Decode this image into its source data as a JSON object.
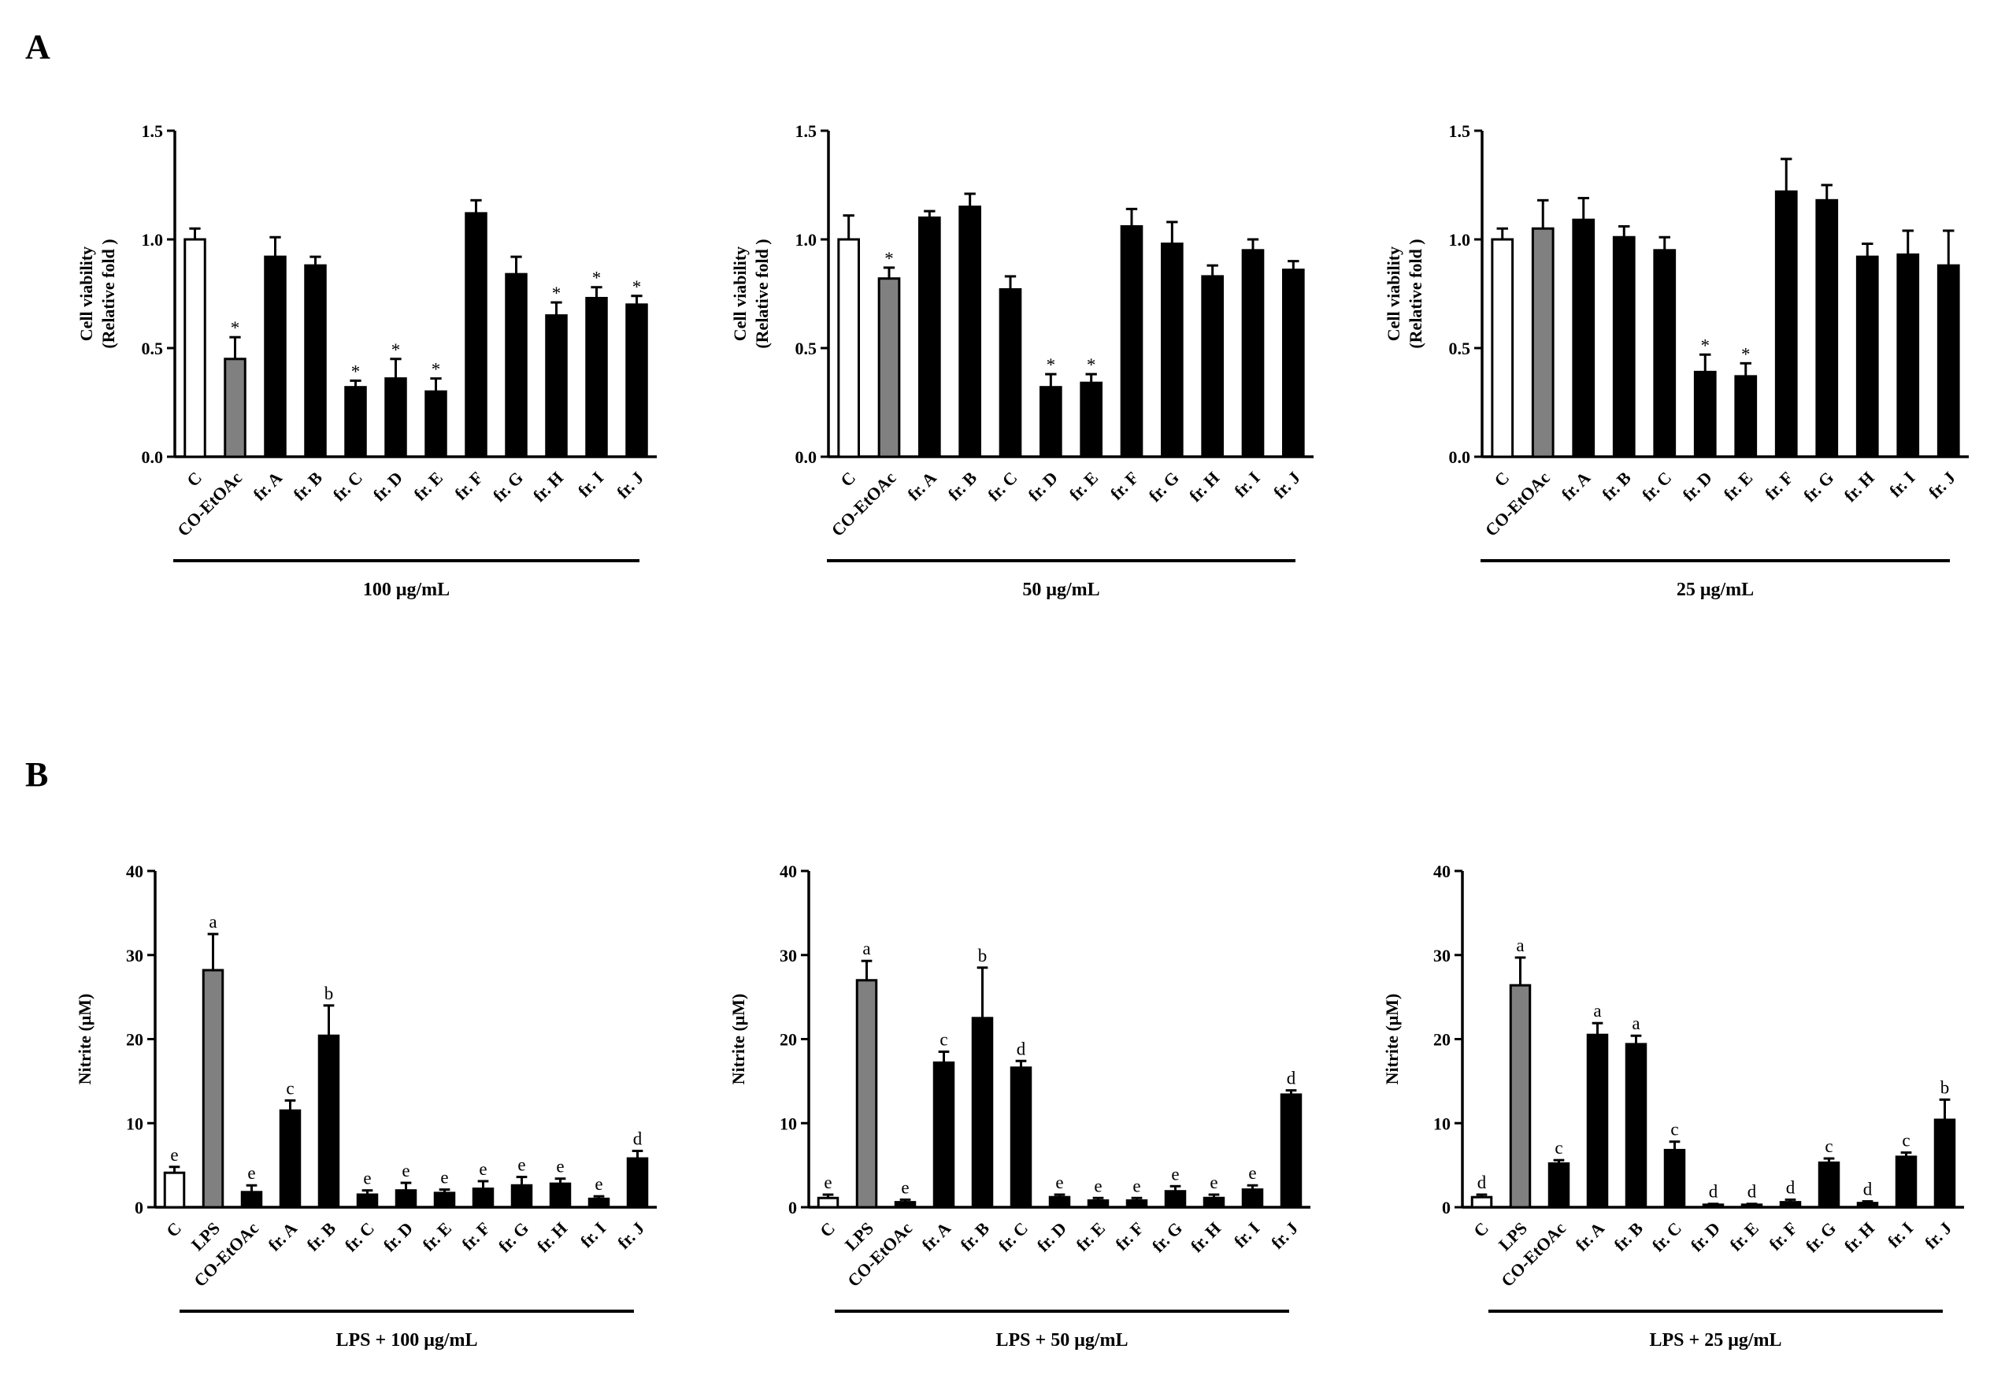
{
  "panels": {
    "A": "A",
    "B": "B"
  },
  "colors": {
    "control": "#ffffff",
    "reference": "#808080",
    "fraction": "#000000"
  },
  "chart_data": [
    {
      "id": "A1",
      "panel": "A",
      "type": "bar",
      "ylabel_line1": "Cell viability",
      "ylabel_line2": "(Relative fold )",
      "ylim": [
        0,
        1.5
      ],
      "yticks": [
        "0.0",
        "0.5",
        "1.0",
        "1.5"
      ],
      "group_label": "100 μg/mL",
      "categories": [
        "C",
        "CO-EtOAc",
        "fr. A",
        "fr. B",
        "fr. C",
        "fr. D",
        "fr. E",
        "fr. F",
        "fr. G",
        "fr. H",
        "fr. I",
        "fr. J"
      ],
      "values": [
        1.0,
        0.45,
        0.92,
        0.88,
        0.32,
        0.36,
        0.3,
        1.12,
        0.84,
        0.65,
        0.73,
        0.7
      ],
      "errors": [
        0.05,
        0.1,
        0.09,
        0.04,
        0.03,
        0.09,
        0.06,
        0.06,
        0.08,
        0.06,
        0.05,
        0.04
      ],
      "annotations": [
        "",
        "*",
        "",
        "",
        "*",
        "*",
        "*",
        "",
        "",
        "*",
        "*",
        "*"
      ],
      "fills": [
        "control",
        "reference",
        "fraction",
        "fraction",
        "fraction",
        "fraction",
        "fraction",
        "fraction",
        "fraction",
        "fraction",
        "fraction",
        "fraction"
      ]
    },
    {
      "id": "A2",
      "panel": "A",
      "type": "bar",
      "ylabel_line1": "Cell viability",
      "ylabel_line2": "(Relative fold )",
      "ylim": [
        0,
        1.5
      ],
      "yticks": [
        "0.0",
        "0.5",
        "1.0",
        "1.5"
      ],
      "group_label": "50 μg/mL",
      "categories": [
        "C",
        "CO-EtOAc",
        "fr. A",
        "fr. B",
        "fr. C",
        "fr. D",
        "fr. E",
        "fr. F",
        "fr. G",
        "fr. H",
        "fr. I",
        "fr. J"
      ],
      "values": [
        1.0,
        0.82,
        1.1,
        1.15,
        0.77,
        0.32,
        0.34,
        1.06,
        0.98,
        0.83,
        0.95,
        0.86
      ],
      "errors": [
        0.11,
        0.05,
        0.03,
        0.06,
        0.06,
        0.06,
        0.04,
        0.08,
        0.1,
        0.05,
        0.05,
        0.04
      ],
      "annotations": [
        "",
        "*",
        "",
        "",
        "",
        "*",
        "*",
        "",
        "",
        "",
        "",
        ""
      ],
      "fills": [
        "control",
        "reference",
        "fraction",
        "fraction",
        "fraction",
        "fraction",
        "fraction",
        "fraction",
        "fraction",
        "fraction",
        "fraction",
        "fraction"
      ]
    },
    {
      "id": "A3",
      "panel": "A",
      "type": "bar",
      "ylabel_line1": "Cell viability",
      "ylabel_line2": "(Relative fold )",
      "ylim": [
        0,
        1.5
      ],
      "yticks": [
        "0.0",
        "0.5",
        "1.0",
        "1.5"
      ],
      "group_label": "25 μg/mL",
      "categories": [
        "C",
        "CO-EtOAc",
        "fr. A",
        "fr. B",
        "fr. C",
        "fr. D",
        "fr. E",
        "fr. F",
        "fr. G",
        "fr. H",
        "fr. I",
        "fr. J"
      ],
      "values": [
        1.0,
        1.05,
        1.09,
        1.01,
        0.95,
        0.39,
        0.37,
        1.22,
        1.18,
        0.92,
        0.93,
        0.88
      ],
      "errors": [
        0.05,
        0.13,
        0.1,
        0.05,
        0.06,
        0.08,
        0.06,
        0.15,
        0.07,
        0.06,
        0.11,
        0.16
      ],
      "annotations": [
        "",
        "",
        "",
        "",
        "",
        "*",
        "*",
        "",
        "",
        "",
        "",
        ""
      ],
      "fills": [
        "control",
        "reference",
        "fraction",
        "fraction",
        "fraction",
        "fraction",
        "fraction",
        "fraction",
        "fraction",
        "fraction",
        "fraction",
        "fraction"
      ]
    },
    {
      "id": "B1",
      "panel": "B",
      "type": "bar",
      "ylabel_line1": "Nitrite (μM)",
      "ylabel_line2": "",
      "ylim": [
        0,
        40
      ],
      "yticks": [
        "0",
        "10",
        "20",
        "30",
        "40"
      ],
      "group_label": "LPS + 100 μg/mL",
      "categories": [
        "C",
        "LPS",
        "CO-EtOAc",
        "fr. A",
        "fr. B",
        "fr. C",
        "fr. D",
        "fr. E",
        "fr. F",
        "fr. G",
        "fr. H",
        "fr. I",
        "fr. J"
      ],
      "values": [
        4.1,
        28.2,
        1.8,
        11.5,
        20.4,
        1.5,
        2.0,
        1.7,
        2.2,
        2.6,
        2.8,
        1.0,
        5.8
      ],
      "errors": [
        0.7,
        4.3,
        0.8,
        1.2,
        3.6,
        0.5,
        0.9,
        0.4,
        0.9,
        1.0,
        0.6,
        0.3,
        0.9
      ],
      "annotations": [
        "e",
        "a",
        "e",
        "c",
        "b",
        "e",
        "e",
        "e",
        "e",
        "e",
        "e",
        "e",
        "d"
      ],
      "fills": [
        "control",
        "reference",
        "fraction",
        "fraction",
        "fraction",
        "fraction",
        "fraction",
        "fraction",
        "fraction",
        "fraction",
        "fraction",
        "fraction",
        "fraction"
      ]
    },
    {
      "id": "B2",
      "panel": "B",
      "type": "bar",
      "ylabel_line1": "Nitrite (μM)",
      "ylabel_line2": "",
      "ylim": [
        0,
        40
      ],
      "yticks": [
        "0",
        "10",
        "20",
        "30",
        "40"
      ],
      "group_label": "LPS + 50 μg/mL",
      "categories": [
        "C",
        "LPS",
        "CO-EtOAc",
        "fr. A",
        "fr. B",
        "fr. C",
        "fr. D",
        "fr. E",
        "fr. F",
        "fr. G",
        "fr. H",
        "fr. I",
        "fr. J"
      ],
      "values": [
        1.1,
        27.0,
        0.6,
        17.2,
        22.5,
        16.6,
        1.2,
        0.8,
        0.8,
        1.9,
        1.1,
        2.1,
        13.4
      ],
      "errors": [
        0.4,
        2.3,
        0.3,
        1.3,
        6.0,
        0.8,
        0.3,
        0.3,
        0.3,
        0.6,
        0.4,
        0.5,
        0.5
      ],
      "annotations": [
        "e",
        "a",
        "e",
        "c",
        "b",
        "d",
        "e",
        "e",
        "e",
        "e",
        "e",
        "e",
        "d"
      ],
      "fills": [
        "control",
        "reference",
        "fraction",
        "fraction",
        "fraction",
        "fraction",
        "fraction",
        "fraction",
        "fraction",
        "fraction",
        "fraction",
        "fraction",
        "fraction"
      ]
    },
    {
      "id": "B3",
      "panel": "B",
      "type": "bar",
      "ylabel_line1": "Nitrite (μM)",
      "ylabel_line2": "",
      "ylim": [
        0,
        40
      ],
      "yticks": [
        "0",
        "10",
        "20",
        "30",
        "40"
      ],
      "group_label": "LPS + 25 μg/mL",
      "categories": [
        "C",
        "LPS",
        "CO-EtOAc",
        "fr. A",
        "fr. B",
        "fr. C",
        "fr. D",
        "fr. E",
        "fr. F",
        "fr. G",
        "fr. H",
        "fr. I",
        "fr. J"
      ],
      "values": [
        1.2,
        26.4,
        5.2,
        20.5,
        19.4,
        6.8,
        0.3,
        0.3,
        0.6,
        5.3,
        0.5,
        6.0,
        10.4
      ],
      "errors": [
        0.3,
        3.3,
        0.4,
        1.4,
        1.0,
        1.0,
        0.1,
        0.1,
        0.3,
        0.5,
        0.2,
        0.5,
        2.4
      ],
      "annotations": [
        "d",
        "a",
        "c",
        "a",
        "a",
        "c",
        "d",
        "d",
        "d",
        "c",
        "d",
        "c",
        "b"
      ],
      "fills": [
        "control",
        "reference",
        "fraction",
        "fraction",
        "fraction",
        "fraction",
        "fraction",
        "fraction",
        "fraction",
        "fraction",
        "fraction",
        "fraction",
        "fraction"
      ]
    }
  ]
}
